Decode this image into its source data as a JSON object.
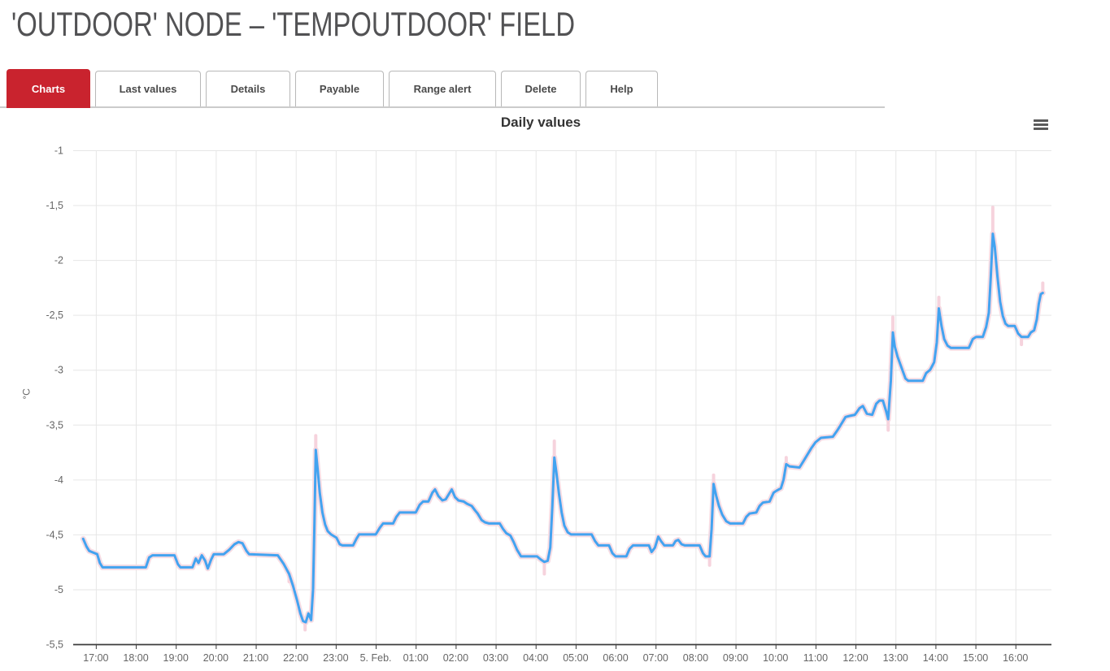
{
  "header": {
    "title": "'OUTDOOR' NODE – 'TEMPOUTDOOR' FIELD"
  },
  "tabs": {
    "items": [
      {
        "label": "Charts",
        "active": true
      },
      {
        "label": "Last values",
        "active": false
      },
      {
        "label": "Details",
        "active": false
      },
      {
        "label": "Payable",
        "active": false
      },
      {
        "label": "Range alert",
        "active": false
      },
      {
        "label": "Delete",
        "active": false
      },
      {
        "label": "Help",
        "active": false
      }
    ]
  },
  "icons": {
    "context_menu": "hamburger-menu-icon"
  },
  "colors": {
    "accent_red": "#c9232e",
    "line_blue": "#43a3f0",
    "band_pink": "#f5dce4",
    "extreme_pink": "#f6d3dd",
    "grid": "#e6e6e6",
    "axis": "#3c3c3c",
    "axis_label": "#666666",
    "chart_title": "#333333",
    "page_title": "#525254"
  },
  "chart_data": {
    "type": "line",
    "title": "Daily values",
    "xlabel": "",
    "ylabel": "°C",
    "ylim": [
      -5.5,
      -1
    ],
    "grid": true,
    "legend": false,
    "x_ticks": [
      {
        "t": 0,
        "label": "17:00"
      },
      {
        "t": 60,
        "label": "18:00"
      },
      {
        "t": 120,
        "label": "19:00"
      },
      {
        "t": 180,
        "label": "20:00"
      },
      {
        "t": 240,
        "label": "21:00"
      },
      {
        "t": 300,
        "label": "22:00"
      },
      {
        "t": 360,
        "label": "23:00"
      },
      {
        "t": 420,
        "label": "5. Feb."
      },
      {
        "t": 480,
        "label": "01:00"
      },
      {
        "t": 540,
        "label": "02:00"
      },
      {
        "t": 600,
        "label": "03:00"
      },
      {
        "t": 660,
        "label": "04:00"
      },
      {
        "t": 720,
        "label": "05:00"
      },
      {
        "t": 780,
        "label": "06:00"
      },
      {
        "t": 840,
        "label": "07:00"
      },
      {
        "t": 900,
        "label": "08:00"
      },
      {
        "t": 960,
        "label": "09:00"
      },
      {
        "t": 1020,
        "label": "10:00"
      },
      {
        "t": 1080,
        "label": "11:00"
      },
      {
        "t": 1140,
        "label": "12:00"
      },
      {
        "t": 1200,
        "label": "13:00"
      },
      {
        "t": 1260,
        "label": "14:00"
      },
      {
        "t": 1320,
        "label": "15:00"
      },
      {
        "t": 1380,
        "label": "16:00"
      }
    ],
    "y_ticks": [
      {
        "v": -1,
        "label": "-1"
      },
      {
        "v": -1.5,
        "label": "-1,5"
      },
      {
        "v": -2,
        "label": "-2"
      },
      {
        "v": -2.5,
        "label": "-2,5"
      },
      {
        "v": -3,
        "label": "-3"
      },
      {
        "v": -3.5,
        "label": "-3,5"
      },
      {
        "v": -4,
        "label": "-4"
      },
      {
        "v": -4.5,
        "label": "-4,5"
      },
      {
        "v": -5,
        "label": "-5"
      },
      {
        "v": -5.5,
        "label": "-5,5"
      }
    ],
    "series": [
      {
        "name": "TempOutdoor",
        "unit": "°C",
        "points": [
          [
            "16:41",
            -4.54
          ],
          [
            "16:46",
            -4.61
          ],
          [
            "16:50",
            -4.65
          ],
          [
            "16:54",
            -4.66
          ],
          [
            "17:02",
            -4.68
          ],
          [
            "17:06",
            -4.76
          ],
          [
            "17:10",
            -4.8
          ],
          [
            "18:15",
            -4.8
          ],
          [
            "18:20",
            -4.71
          ],
          [
            "18:25",
            -4.69
          ],
          [
            "18:58",
            -4.69
          ],
          [
            "19:03",
            -4.77
          ],
          [
            "19:07",
            -4.8
          ],
          [
            "19:25",
            -4.8
          ],
          [
            "19:30",
            -4.72
          ],
          [
            "19:34",
            -4.76
          ],
          [
            "19:39",
            -4.69
          ],
          [
            "19:44",
            -4.74
          ],
          [
            "19:48",
            -4.81
          ],
          [
            "19:53",
            -4.73
          ],
          [
            "19:57",
            -4.68
          ],
          [
            "20:12",
            -4.68
          ],
          [
            "20:20",
            -4.64
          ],
          [
            "20:28",
            -4.59
          ],
          [
            "20:34",
            -4.57
          ],
          [
            "20:40",
            -4.58
          ],
          [
            "20:46",
            -4.65
          ],
          [
            "20:50",
            -4.68
          ],
          [
            "21:33",
            -4.69
          ],
          [
            "21:42",
            -4.77
          ],
          [
            "21:50",
            -4.86
          ],
          [
            "21:56",
            -4.97
          ],
          [
            "22:02",
            -5.1
          ],
          [
            "22:07",
            -5.22
          ],
          [
            "22:11",
            -5.29
          ],
          [
            "22:15",
            -5.3
          ],
          [
            "22:19",
            -5.22
          ],
          [
            "22:23",
            -5.28
          ],
          [
            "22:26",
            -5.0
          ],
          [
            "22:28",
            -4.4
          ],
          [
            "22:30",
            -3.73
          ],
          [
            "22:33",
            -3.92
          ],
          [
            "22:36",
            -4.12
          ],
          [
            "22:40",
            -4.3
          ],
          [
            "22:44",
            -4.41
          ],
          [
            "22:48",
            -4.47
          ],
          [
            "22:53",
            -4.5
          ],
          [
            "23:01",
            -4.53
          ],
          [
            "23:06",
            -4.59
          ],
          [
            "23:10",
            -4.6
          ],
          [
            "23:26",
            -4.6
          ],
          [
            "23:31",
            -4.54
          ],
          [
            "23:35",
            -4.5
          ],
          [
            "0:00",
            -4.5
          ],
          [
            "0:06",
            -4.44
          ],
          [
            "0:11",
            -4.4
          ],
          [
            "0:26",
            -4.4
          ],
          [
            "0:31",
            -4.34
          ],
          [
            "0:36",
            -4.3
          ],
          [
            "1:00",
            -4.3
          ],
          [
            "1:06",
            -4.23
          ],
          [
            "1:11",
            -4.2
          ],
          [
            "1:19",
            -4.2
          ],
          [
            "1:25",
            -4.12
          ],
          [
            "1:29",
            -4.09
          ],
          [
            "1:34",
            -4.15
          ],
          [
            "1:40",
            -4.19
          ],
          [
            "1:45",
            -4.18
          ],
          [
            "1:50",
            -4.13
          ],
          [
            "1:54",
            -4.09
          ],
          [
            "1:59",
            -4.16
          ],
          [
            "2:04",
            -4.19
          ],
          [
            "2:12",
            -4.2
          ],
          [
            "2:17",
            -4.22
          ],
          [
            "2:24",
            -4.24
          ],
          [
            "2:29",
            -4.28
          ],
          [
            "2:33",
            -4.31
          ],
          [
            "2:39",
            -4.37
          ],
          [
            "2:44",
            -4.39
          ],
          [
            "2:50",
            -4.4
          ],
          [
            "3:06",
            -4.4
          ],
          [
            "3:11",
            -4.45
          ],
          [
            "3:16",
            -4.49
          ],
          [
            "3:22",
            -4.51
          ],
          [
            "3:27",
            -4.57
          ],
          [
            "3:32",
            -4.64
          ],
          [
            "3:38",
            -4.7
          ],
          [
            "4:02",
            -4.7
          ],
          [
            "4:08",
            -4.73
          ],
          [
            "4:13",
            -4.75
          ],
          [
            "4:18",
            -4.74
          ],
          [
            "4:22",
            -4.62
          ],
          [
            "4:25",
            -4.25
          ],
          [
            "4:28",
            -3.8
          ],
          [
            "4:31",
            -3.93
          ],
          [
            "4:35",
            -4.13
          ],
          [
            "4:39",
            -4.3
          ],
          [
            "4:43",
            -4.42
          ],
          [
            "4:48",
            -4.48
          ],
          [
            "4:53",
            -4.5
          ],
          [
            "5:24",
            -4.5
          ],
          [
            "5:29",
            -4.56
          ],
          [
            "5:34",
            -4.6
          ],
          [
            "5:50",
            -4.6
          ],
          [
            "5:55",
            -4.67
          ],
          [
            "6:00",
            -4.7
          ],
          [
            "6:16",
            -4.7
          ],
          [
            "6:21",
            -4.63
          ],
          [
            "6:26",
            -4.6
          ],
          [
            "6:50",
            -4.6
          ],
          [
            "6:54",
            -4.66
          ],
          [
            "6:59",
            -4.62
          ],
          [
            "7:04",
            -4.52
          ],
          [
            "7:08",
            -4.56
          ],
          [
            "7:13",
            -4.6
          ],
          [
            "7:26",
            -4.6
          ],
          [
            "7:30",
            -4.56
          ],
          [
            "7:34",
            -4.55
          ],
          [
            "7:39",
            -4.59
          ],
          [
            "7:44",
            -4.6
          ],
          [
            "8:06",
            -4.6
          ],
          [
            "8:11",
            -4.67
          ],
          [
            "8:15",
            -4.7
          ],
          [
            "8:21",
            -4.7
          ],
          [
            "8:24",
            -4.45
          ],
          [
            "8:27",
            -4.04
          ],
          [
            "8:31",
            -4.15
          ],
          [
            "8:35",
            -4.24
          ],
          [
            "8:40",
            -4.32
          ],
          [
            "8:46",
            -4.38
          ],
          [
            "8:52",
            -4.4
          ],
          [
            "9:11",
            -4.4
          ],
          [
            "9:16",
            -4.34
          ],
          [
            "9:21",
            -4.31
          ],
          [
            "9:31",
            -4.3
          ],
          [
            "9:36",
            -4.24
          ],
          [
            "9:41",
            -4.21
          ],
          [
            "9:51",
            -4.2
          ],
          [
            "9:57",
            -4.12
          ],
          [
            "10:02",
            -4.1
          ],
          [
            "10:08",
            -4.08
          ],
          [
            "10:12",
            -4.0
          ],
          [
            "10:16",
            -3.86
          ],
          [
            "10:21",
            -3.88
          ],
          [
            "10:36",
            -3.89
          ],
          [
            "10:42",
            -3.83
          ],
          [
            "10:48",
            -3.77
          ],
          [
            "10:54",
            -3.71
          ],
          [
            "11:00",
            -3.66
          ],
          [
            "11:08",
            -3.62
          ],
          [
            "11:26",
            -3.61
          ],
          [
            "11:33",
            -3.55
          ],
          [
            "11:39",
            -3.49
          ],
          [
            "11:45",
            -3.43
          ],
          [
            "11:51",
            -3.42
          ],
          [
            "11:59",
            -3.41
          ],
          [
            "12:06",
            -3.35
          ],
          [
            "12:11",
            -3.33
          ],
          [
            "12:17",
            -3.4
          ],
          [
            "12:25",
            -3.41
          ],
          [
            "12:31",
            -3.31
          ],
          [
            "12:36",
            -3.28
          ],
          [
            "12:41",
            -3.28
          ],
          [
            "12:46",
            -3.38
          ],
          [
            "12:49",
            -3.45
          ],
          [
            "12:53",
            -3.1
          ],
          [
            "12:56",
            -2.66
          ],
          [
            "12:59",
            -2.79
          ],
          [
            "13:03",
            -2.88
          ],
          [
            "13:09",
            -2.98
          ],
          [
            "13:15",
            -3.08
          ],
          [
            "13:19",
            -3.1
          ],
          [
            "13:41",
            -3.1
          ],
          [
            "13:46",
            -3.03
          ],
          [
            "13:52",
            -3.0
          ],
          [
            "13:58",
            -2.93
          ],
          [
            "14:02",
            -2.75
          ],
          [
            "14:05",
            -2.44
          ],
          [
            "14:09",
            -2.6
          ],
          [
            "14:13",
            -2.72
          ],
          [
            "14:18",
            -2.78
          ],
          [
            "14:23",
            -2.8
          ],
          [
            "14:50",
            -2.8
          ],
          [
            "14:56",
            -2.72
          ],
          [
            "15:01",
            -2.7
          ],
          [
            "15:11",
            -2.7
          ],
          [
            "15:16",
            -2.61
          ],
          [
            "15:20",
            -2.48
          ],
          [
            "15:23",
            -2.15
          ],
          [
            "15:26",
            -1.76
          ],
          [
            "15:29",
            -1.88
          ],
          [
            "15:33",
            -2.15
          ],
          [
            "15:37",
            -2.38
          ],
          [
            "15:41",
            -2.51
          ],
          [
            "15:45",
            -2.58
          ],
          [
            "15:49",
            -2.6
          ],
          [
            "15:59",
            -2.6
          ],
          [
            "16:04",
            -2.67
          ],
          [
            "16:09",
            -2.7
          ],
          [
            "16:19",
            -2.7
          ],
          [
            "16:23",
            -2.66
          ],
          [
            "16:28",
            -2.64
          ],
          [
            "16:32",
            -2.54
          ],
          [
            "16:35",
            -2.4
          ],
          [
            "16:38",
            -2.31
          ],
          [
            "16:41",
            -2.3
          ]
        ]
      }
    ],
    "range_extremes": [
      {
        "time": "21:50",
        "t": 290,
        "from": -4.86,
        "to": -4.93
      },
      {
        "time": "22:14",
        "t": 314,
        "from": -5.3,
        "to": -5.37
      },
      {
        "time": "22:30",
        "t": 330,
        "from": -3.73,
        "to": -3.6
      },
      {
        "time": "04:13",
        "t": 673,
        "from": -4.75,
        "to": -4.86
      },
      {
        "time": "04:28",
        "t": 688,
        "from": -3.8,
        "to": -3.65
      },
      {
        "time": "08:21",
        "t": 921,
        "from": -4.7,
        "to": -4.78
      },
      {
        "time": "08:27",
        "t": 927,
        "from": -4.04,
        "to": -3.96
      },
      {
        "time": "10:16",
        "t": 1036,
        "from": -3.86,
        "to": -3.8
      },
      {
        "time": "12:49",
        "t": 1189,
        "from": -3.45,
        "to": -3.55
      },
      {
        "time": "12:56",
        "t": 1196,
        "from": -2.66,
        "to": -2.52
      },
      {
        "time": "14:05",
        "t": 1265,
        "from": -2.44,
        "to": -2.34
      },
      {
        "time": "15:26",
        "t": 1346,
        "from": -1.76,
        "to": -1.52
      },
      {
        "time": "16:09",
        "t": 1389,
        "from": -2.7,
        "to": -2.77
      },
      {
        "time": "16:41",
        "t": 1421,
        "from": -2.3,
        "to": -2.21
      }
    ]
  }
}
